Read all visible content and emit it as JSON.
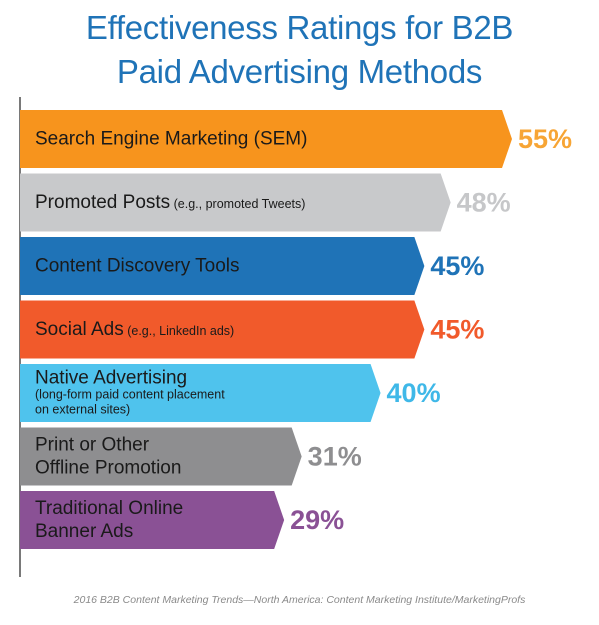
{
  "header": {
    "title_line1": "Effectiveness Ratings for B2B",
    "title_line2": "Paid Advertising Methods"
  },
  "footer": {
    "source": "2016 B2B Content Marketing Trends—North America: Content Marketing Institute/MarketingProfs"
  },
  "chart_data": {
    "type": "bar",
    "orientation": "horizontal",
    "title": "Effectiveness Ratings for B2B Paid Advertising Methods",
    "xlabel": "",
    "ylabel": "",
    "unit": "%",
    "xlim": [
      0,
      55
    ],
    "grid": false,
    "categories": [
      "Search Engine Marketing (SEM)",
      "Promoted Posts (e.g., promoted Tweets)",
      "Content Discovery Tools",
      "Social Ads (e.g., LinkedIn ads)",
      "Native Advertising (long-form paid content placement on external sites)",
      "Print or Other Offline Promotion",
      "Traditional Online Banner Ads"
    ],
    "values": [
      55,
      48,
      45,
      45,
      40,
      31,
      29
    ],
    "value_labels": [
      "55%",
      "48%",
      "45%",
      "45%",
      "40%",
      "31%",
      "29%"
    ],
    "bars": [
      {
        "lines": [
          {
            "main": "Search Engine Marketing (SEM)",
            "note": ""
          }
        ],
        "color": "#f7941d",
        "value_color": "#f7a535"
      },
      {
        "lines": [
          {
            "main": "Promoted Posts",
            "note": " (e.g., promoted Tweets)"
          }
        ],
        "color": "#c8c9cb",
        "value_color": "#c6c7c9"
      },
      {
        "lines": [
          {
            "main": "Content Discovery Tools",
            "note": ""
          }
        ],
        "color": "#1f73b7",
        "value_color": "#1f73b7"
      },
      {
        "lines": [
          {
            "main": "Social Ads",
            "note": " (e.g., LinkedIn ads)"
          }
        ],
        "color": "#f15a2b",
        "value_color": "#f15a2b"
      },
      {
        "lines": [
          {
            "main": "Native Advertising",
            "note": ""
          },
          {
            "main": "",
            "note": "(long-form paid content placement"
          },
          {
            "main": "",
            "note": "on external sites)"
          }
        ],
        "color": "#4fc3ed",
        "value_color": "#3fb8e8"
      },
      {
        "lines": [
          {
            "main": "Print or Other",
            "note": ""
          },
          {
            "main": "Offline Promotion",
            "note": ""
          }
        ],
        "color": "#8e8e90",
        "value_color": "#8e8e90"
      },
      {
        "lines": [
          {
            "main": "Traditional Online",
            "note": ""
          },
          {
            "main": "Banner Ads",
            "note": ""
          }
        ],
        "color": "#8a5195",
        "value_color": "#8a5195"
      }
    ]
  }
}
